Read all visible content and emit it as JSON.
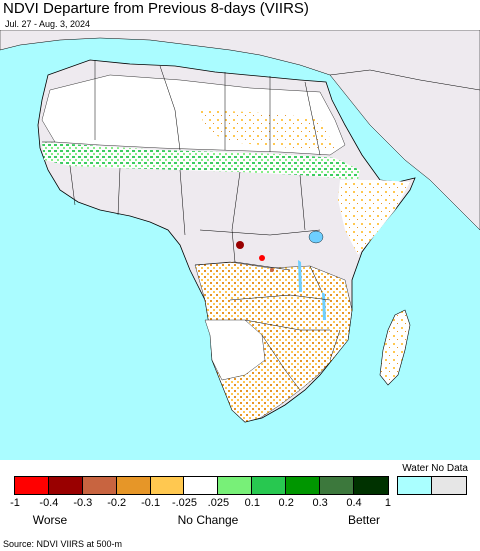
{
  "title": "NDVI Departure from Previous 8-days (VIIRS)",
  "subtitle": "Jul. 27 - Aug. 3, 2024",
  "legend": {
    "header": "Water No Data",
    "swatch_colors": [
      "#ff0000",
      "#990000",
      "#c86440",
      "#e69628",
      "#ffc850",
      "#ffffff",
      "#78f078",
      "#28c850",
      "#009600",
      "#3c783c",
      "#003200",
      "#aaffff",
      "#e6e6e6"
    ],
    "ticks": [
      "-1",
      "-0.4",
      "-0.3",
      "-0.2",
      "-0.1",
      "-.025",
      ".025",
      "0.1",
      "0.2",
      "0.3",
      "0.4",
      "1"
    ],
    "captions": {
      "worse": "Worse",
      "no_change": "No Change",
      "better": "Better"
    }
  },
  "source": "Source: NDVI VIIRS at 500-m",
  "colors": {
    "ocean": "#aafcff",
    "no_data_land": "#eeeaef",
    "neutral_land": "#ffffff",
    "border": "#000000"
  }
}
